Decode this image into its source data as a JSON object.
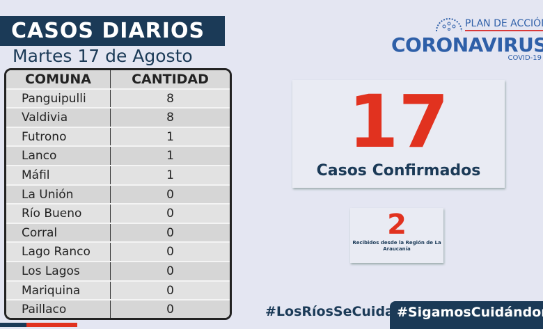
{
  "header": {
    "title": "CASOS DIARIOS",
    "date": "Martes 17 de Agosto"
  },
  "table": {
    "headers": [
      "COMUNA",
      "CANTIDAD"
    ],
    "rows": [
      [
        "Panguipulli",
        "8"
      ],
      [
        "Valdivia",
        "8"
      ],
      [
        "Futrono",
        "1"
      ],
      [
        "Lanco",
        "1"
      ],
      [
        "Máfil",
        "1"
      ],
      [
        "La Unión",
        "0"
      ],
      [
        "Río Bueno",
        "0"
      ],
      [
        "Corral",
        "0"
      ],
      [
        "Lago Ranco",
        "0"
      ],
      [
        "Los Lagos",
        "0"
      ],
      [
        "Mariquina",
        "0"
      ],
      [
        "Paillaco",
        "0"
      ]
    ]
  },
  "logo": {
    "plan": "PLAN DE ACCIÓN",
    "name": "CORONAVIRUS",
    "sub": "COVID-19"
  },
  "summary": {
    "total": "17",
    "total_label": "Casos Confirmados",
    "received": "2",
    "received_label": "Recibidos desde la Región de La Araucanía"
  },
  "footer": {
    "tag1": "#LosRíosSeCuida",
    "tag2": "#SigamosCuidándonos"
  },
  "colors": {
    "navy": "#1b3a57",
    "red": "#e1321f",
    "blue": "#2e5fa8"
  }
}
